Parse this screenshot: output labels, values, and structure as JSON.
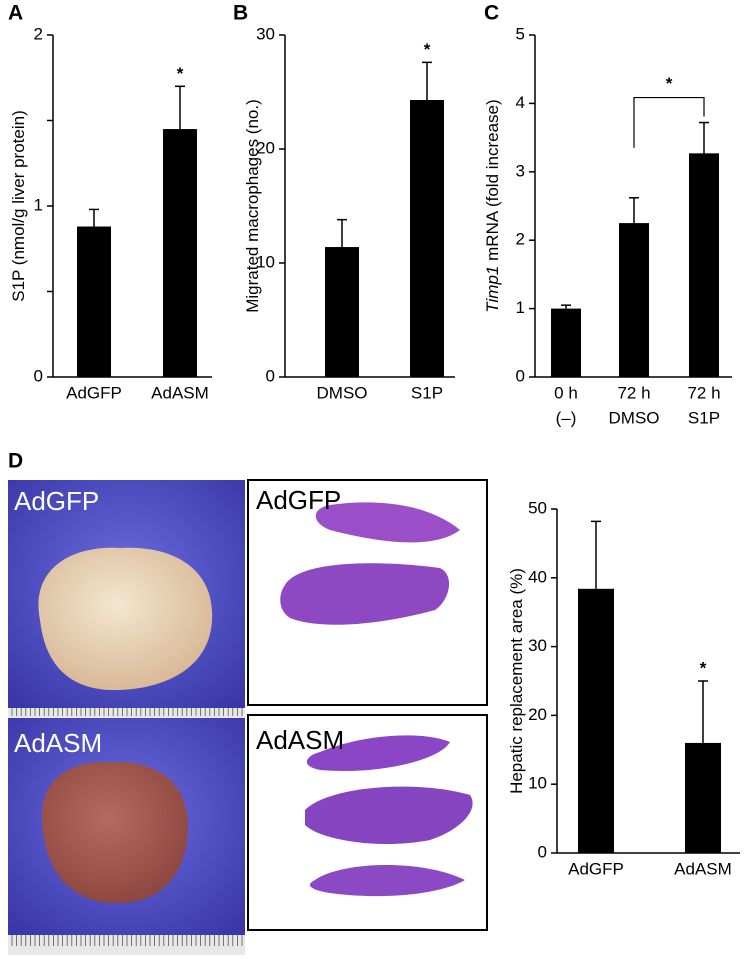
{
  "chart_data": [
    {
      "type": "bar",
      "panel": "A",
      "y_label": "S1P (nmol/g liver protein)",
      "categories": [
        "AdGFP",
        "AdASM"
      ],
      "values": [
        0.88,
        1.45
      ],
      "errors": [
        0.1,
        0.25
      ],
      "color": "#000000",
      "ylim": [
        0,
        2
      ],
      "yticks": [
        0,
        1,
        2
      ],
      "minor_yticks": [
        0.5,
        1.5
      ],
      "significance": [
        {
          "label": "*",
          "over": [
            1
          ]
        }
      ]
    },
    {
      "type": "bar",
      "panel": "B",
      "y_label": "Migrated macrophages (no.)",
      "categories": [
        "DMSO",
        "S1P"
      ],
      "values": [
        11.4,
        24.3
      ],
      "errors": [
        2.4,
        3.3
      ],
      "color": "#000000",
      "ylim": [
        0,
        30
      ],
      "yticks": [
        0,
        10,
        20,
        30
      ],
      "significance": [
        {
          "label": "*",
          "over": [
            1
          ]
        }
      ]
    },
    {
      "type": "bar",
      "panel": "C",
      "y_label_italic": "Timp1",
      "y_label": "mRNA (fold increase)",
      "categories": [
        "0 h",
        "72 h",
        "72 h"
      ],
      "subcategories": [
        "(–)",
        "DMSO",
        "S1P"
      ],
      "values": [
        1.0,
        2.25,
        3.27
      ],
      "errors": [
        0.05,
        0.37,
        0.45
      ],
      "color": "#000000",
      "ylim": [
        0,
        5
      ],
      "yticks": [
        0,
        1,
        2,
        3,
        4,
        5
      ],
      "significance": [
        {
          "label": "*",
          "over": [
            1,
            2
          ]
        }
      ]
    },
    {
      "type": "bar",
      "panel": "D",
      "y_label": "Hepatic replacement area (%)",
      "categories": [
        "AdGFP",
        "AdASM"
      ],
      "values": [
        38.4,
        16.0
      ],
      "errors": [
        9.8,
        9.0
      ],
      "color": "#000000",
      "ylim": [
        0,
        50
      ],
      "yticks": [
        0,
        10,
        20,
        30,
        40,
        50
      ],
      "significance": [
        {
          "label": "*",
          "over": [
            1
          ]
        }
      ]
    }
  ],
  "photos": {
    "gross": [
      "AdGFP",
      "AdASM"
    ],
    "histology": [
      "AdGFP",
      "AdASM"
    ]
  }
}
